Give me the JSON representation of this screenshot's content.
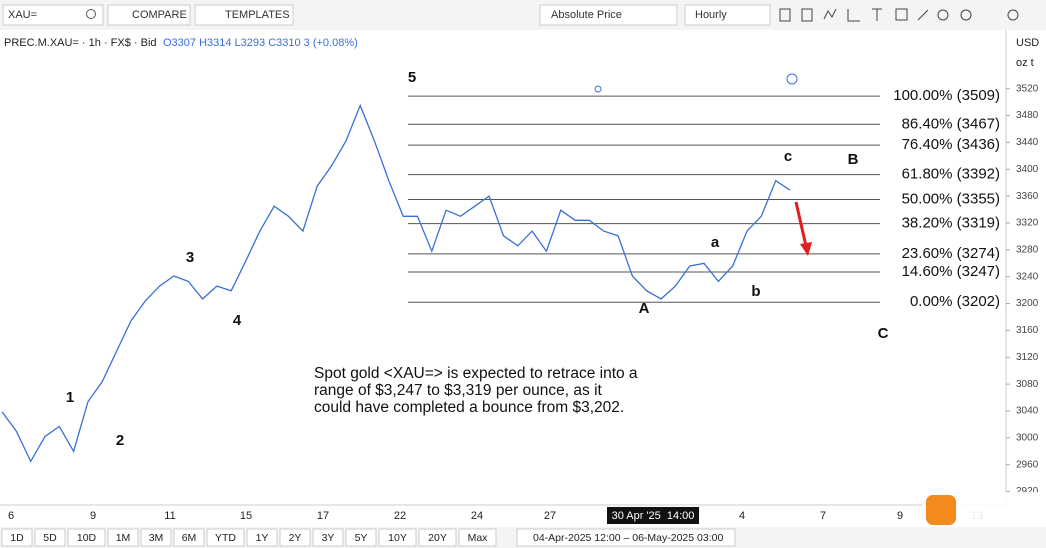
{
  "toolbar": {
    "symbol": "XAU=",
    "compare": "COMPARE",
    "templates": "TEMPLATES",
    "price_mode": "Absolute Price",
    "interval": "Hourly"
  },
  "legend": {
    "instrument": "PREC.M.XAU= · 1h · FX$ · Bid",
    "ohlc": "O3307 H3314 L3293 C3310 3 (+0.08%)"
  },
  "axis_units": {
    "currency": "USD",
    "unit": "oz t"
  },
  "chart_data": {
    "type": "line",
    "color": "#3a6fd8",
    "values": [
      3039,
      3010,
      2965,
      3002,
      3017,
      2980,
      3054,
      3084,
      3129,
      3174,
      3204,
      3226,
      3241,
      3233,
      3207,
      3226,
      3219,
      3263,
      3308,
      3345,
      3330,
      3308,
      3375,
      3405,
      3442,
      3495,
      3442,
      3383,
      3330,
      3330,
      3278,
      3339,
      3330,
      3345,
      3360,
      3301,
      3286,
      3308,
      3278,
      3339,
      3324,
      3324,
      3308,
      3301,
      3241,
      3219,
      3207,
      3226,
      3256,
      3260,
      3233,
      3256,
      3308,
      3330,
      3383,
      3369
    ],
    "ylim": [
      2900,
      3600
    ],
    "yticks": [
      2920,
      2960,
      3000,
      3040,
      3080,
      3120,
      3160,
      3200,
      3240,
      3280,
      3320,
      3360,
      3400,
      3440,
      3480,
      3520
    ],
    "x_labels": [
      "6",
      "9",
      "11",
      "15",
      "17",
      "22",
      "24",
      "27",
      "30 Apr '25  14:00",
      "4",
      "7",
      "9",
      "13"
    ],
    "fib_levels": [
      {
        "label": "100.00% (3509)",
        "value": 3509
      },
      {
        "label": "86.40% (3467)",
        "value": 3467
      },
      {
        "label": "76.40% (3436)",
        "value": 3436
      },
      {
        "label": "61.80% (3392)",
        "value": 3392
      },
      {
        "label": "50.00% (3355)",
        "value": 3355
      },
      {
        "label": "38.20% (3319)",
        "value": 3319
      },
      {
        "label": "23.60% (3274)",
        "value": 3274
      },
      {
        "label": "14.60% (3247)",
        "value": 3247
      },
      {
        "label": "0.00% (3202)",
        "value": 3202
      }
    ],
    "waves": [
      "1",
      "2",
      "3",
      "4",
      "5",
      "A",
      "a",
      "b",
      "c",
      "B",
      "C"
    ],
    "annotation": [
      "Spot gold <XAU=> is expected to retrace into a",
      "range of $3,247 to $3,319 per ounce, as it",
      "could have completed a bounce from $3,202."
    ]
  },
  "range_buttons": [
    "1D",
    "5D",
    "10D",
    "1M",
    "3M",
    "6M",
    "YTD",
    "1Y",
    "2Y",
    "3Y",
    "5Y",
    "10Y",
    "20Y",
    "Max"
  ],
  "date_range": "04-Apr-2025 12:00 – 06-May-2025 03:00"
}
